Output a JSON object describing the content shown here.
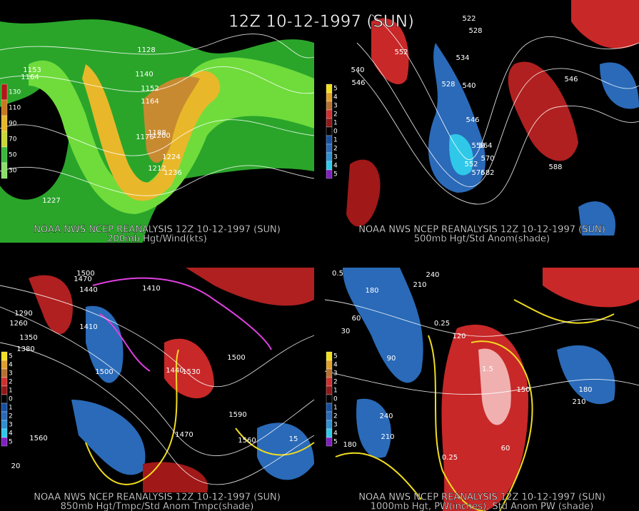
{
  "title": "12Z 10-12-1997 (SUN)",
  "panels": [
    {
      "caption": "NOAA NWS NCEP REANALYSIS 12Z 10-12-1997 (SUN)",
      "subcaption": "200mb Hgt/Wind(kts)",
      "legend": [
        "130",
        "110",
        "90",
        "70",
        "50",
        "30"
      ],
      "labels": [
        "1128",
        "1164",
        "1140",
        "1152",
        "1164",
        "1188",
        "1176",
        "1200",
        "1224",
        "1212",
        "1236",
        "1227",
        "1153"
      ]
    },
    {
      "caption": "NOAA NWS NCEP REANALYSIS 12Z 10-12-1997 (SUN)",
      "subcaption": "500mb Hgt/Std Anom(shade)",
      "legend": [
        "5",
        "4",
        "3",
        "2",
        "1",
        "0",
        "1",
        "2",
        "3",
        "4",
        "5"
      ],
      "labels": [
        "522",
        "528",
        "534",
        "552",
        "540",
        "546",
        "528",
        "540",
        "546",
        "552",
        "558",
        "564",
        "570",
        "576",
        "582",
        "588",
        "546"
      ]
    },
    {
      "caption": "NOAA NWS NCEP REANALYSIS 12Z 10-12-1997 (SUN)",
      "subcaption": "850mb Hgt/Tmpc/Std Anom Tmpc(shade)",
      "legend": [
        "5",
        "4",
        "3",
        "2",
        "1",
        "0",
        "1",
        "2",
        "3",
        "4",
        "5"
      ],
      "labels": [
        "1500",
        "1470",
        "1440",
        "1410",
        "1290",
        "1260",
        "1350",
        "1380",
        "1410",
        "1500",
        "1440",
        "1530",
        "1500",
        "1590",
        "1560",
        "1560",
        "1470",
        "15",
        "20"
      ]
    },
    {
      "caption": "NOAA NWS NCEP REANALYSIS 12Z 10-12-1997 (SUN)",
      "subcaption": "1000mb Hgt, PW(inches), Std Anom PW (shade)",
      "legend": [
        "5",
        "4",
        "3",
        "2",
        "1",
        "0",
        "1",
        "2",
        "3",
        "4",
        "5"
      ],
      "labels": [
        "0.5",
        "240",
        "210",
        "180",
        "60",
        "30",
        "120",
        "90",
        "0.25",
        "1.5",
        "150",
        "180",
        "210",
        "240",
        "210",
        "180",
        "0.25",
        "60"
      ]
    }
  ]
}
